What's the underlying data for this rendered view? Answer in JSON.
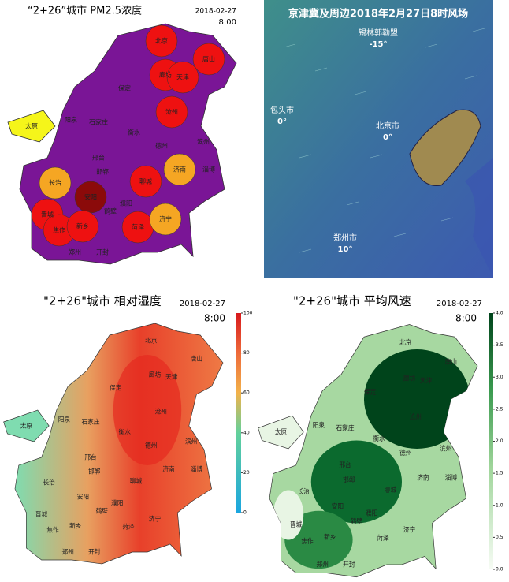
{
  "pm25": {
    "title": "“2+26”城市  PM2.5浓度",
    "date": "2018-02-27",
    "time": "8:00",
    "cities": [
      {
        "name": "北京",
        "color": "#ee1111"
      },
      {
        "name": "唐山",
        "color": "#ee1111"
      },
      {
        "name": "廊坊",
        "color": "#ee1111"
      },
      {
        "name": "天津",
        "color": "#ee1111"
      },
      {
        "name": "保定",
        "color": "#7a1596"
      },
      {
        "name": "沧州",
        "color": "#ee1111"
      },
      {
        "name": "石家庄",
        "color": "#7a1596"
      },
      {
        "name": "阳泉",
        "color": "#7a1596"
      },
      {
        "name": "太原",
        "color": "#f5f51a"
      },
      {
        "name": "衡水",
        "color": "#7a1596"
      },
      {
        "name": "德州",
        "color": "#7a1596"
      },
      {
        "name": "滨州",
        "color": "#7a1596"
      },
      {
        "name": "邢台",
        "color": "#7a1596"
      },
      {
        "name": "聊城",
        "color": "#ee1111"
      },
      {
        "name": "济南",
        "color": "#f5a623"
      },
      {
        "name": "淄博",
        "color": "#7a1596"
      },
      {
        "name": "邯郸",
        "color": "#7a1596"
      },
      {
        "name": "长治",
        "color": "#f5a623"
      },
      {
        "name": "安阳",
        "color": "#8b0a0a"
      },
      {
        "name": "鹤壁",
        "color": "#7a1596"
      },
      {
        "name": "濮阳",
        "color": "#7a1596"
      },
      {
        "name": "晋城",
        "color": "#ee1111"
      },
      {
        "name": "焦作",
        "color": "#ee1111"
      },
      {
        "name": "新乡",
        "color": "#ee1111"
      },
      {
        "name": "菏泽",
        "color": "#ee1111"
      },
      {
        "name": "济宁",
        "color": "#f5a623"
      },
      {
        "name": "郑州",
        "color": "#7a1596"
      },
      {
        "name": "开封",
        "color": "#7a1596"
      }
    ]
  },
  "wind_field": {
    "title": "京津冀及周边2018年2月27日8时风场",
    "labels": [
      {
        "name": "锡林郭勒盟",
        "value": "-15°"
      },
      {
        "name": "包头市",
        "value": "0°"
      },
      {
        "name": "北京市",
        "value": "0°"
      },
      {
        "name": "郑州市",
        "value": "10°"
      }
    ]
  },
  "humidity": {
    "title": "\"2+26\"城市  相对湿度",
    "date": "2018-02-27",
    "time": "8:00",
    "colorbar": {
      "range": [
        0,
        100
      ],
      "ticks": [
        0,
        20,
        40,
        60,
        80,
        100
      ]
    }
  },
  "wind_speed": {
    "title": "\"2+26\"城市  平均风速",
    "date": "2018-02-27",
    "time": "8:00",
    "colorbar": {
      "range": [
        0,
        4
      ],
      "ticks": [
        {
          "value": 0,
          "label": "0.0"
        },
        {
          "value": 0.5,
          "label": "0.5"
        },
        {
          "value": 1,
          "label": "1.0"
        },
        {
          "value": 1.5,
          "label": "1.5"
        },
        {
          "value": 2,
          "label": "2.0"
        },
        {
          "value": 2.5,
          "label": "2.5"
        },
        {
          "value": 3,
          "label": "3.0"
        },
        {
          "value": 3.5,
          "label": "3.5"
        },
        {
          "value": 4,
          "label": "4.0"
        }
      ]
    }
  }
}
